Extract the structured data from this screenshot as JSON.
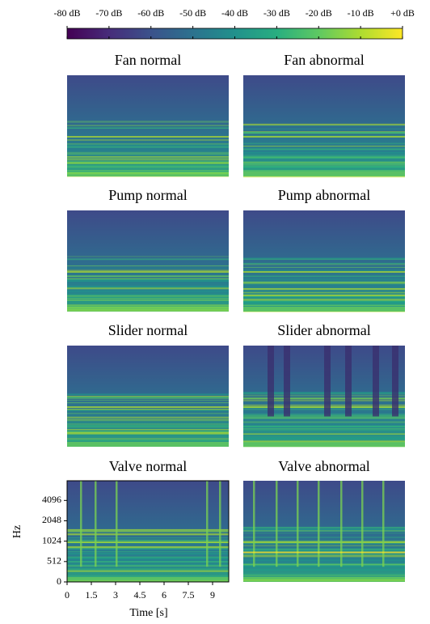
{
  "chart_data": {
    "type": "spectrogram",
    "colormap": "viridis",
    "clim": [
      -80,
      0
    ],
    "colorbar_ticks": [
      {
        "value": -80,
        "label": "-80 dB"
      },
      {
        "value": -70,
        "label": "-70 dB"
      },
      {
        "value": -60,
        "label": "-60 dB"
      },
      {
        "value": -50,
        "label": "-50 dB"
      },
      {
        "value": -40,
        "label": "-40 dB"
      },
      {
        "value": -30,
        "label": "-30 dB"
      },
      {
        "value": -20,
        "label": "-20 dB"
      },
      {
        "value": -10,
        "label": "-10 dB"
      },
      {
        "value": 0,
        "label": "+0 dB"
      }
    ],
    "panels": [
      "Fan normal",
      "Fan abnormal",
      "Pump normal",
      "Pump abnormal",
      "Slider normal",
      "Slider abnormal",
      "Valve normal",
      "Valve abnormal"
    ],
    "xlabel": "Time [s]",
    "ylabel": "Hz",
    "xlim": [
      0,
      10
    ],
    "xticks": [
      0,
      1.5,
      3,
      4.5,
      6,
      7.5,
      9
    ],
    "yscale": "symlog",
    "ylinthresh": 512,
    "ylim": [
      0,
      8000
    ],
    "yticks": [
      0,
      512,
      1024,
      2048,
      4096
    ]
  }
}
